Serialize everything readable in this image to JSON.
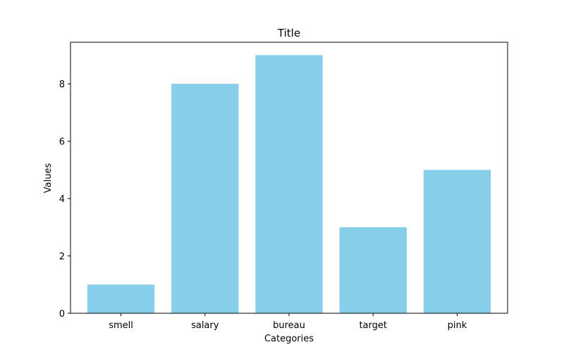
{
  "chart_data": {
    "type": "bar",
    "title": "Title",
    "xlabel": "Categories",
    "ylabel": "Values",
    "categories": [
      "smell",
      "salary",
      "bureau",
      "target",
      "pink"
    ],
    "values": [
      1,
      8,
      9,
      3,
      5
    ],
    "ylim": [
      0,
      9.45
    ],
    "yticks": [
      0,
      2,
      4,
      6,
      8
    ],
    "bar_color": "#87ceeb",
    "grid": false,
    "legend": null
  }
}
